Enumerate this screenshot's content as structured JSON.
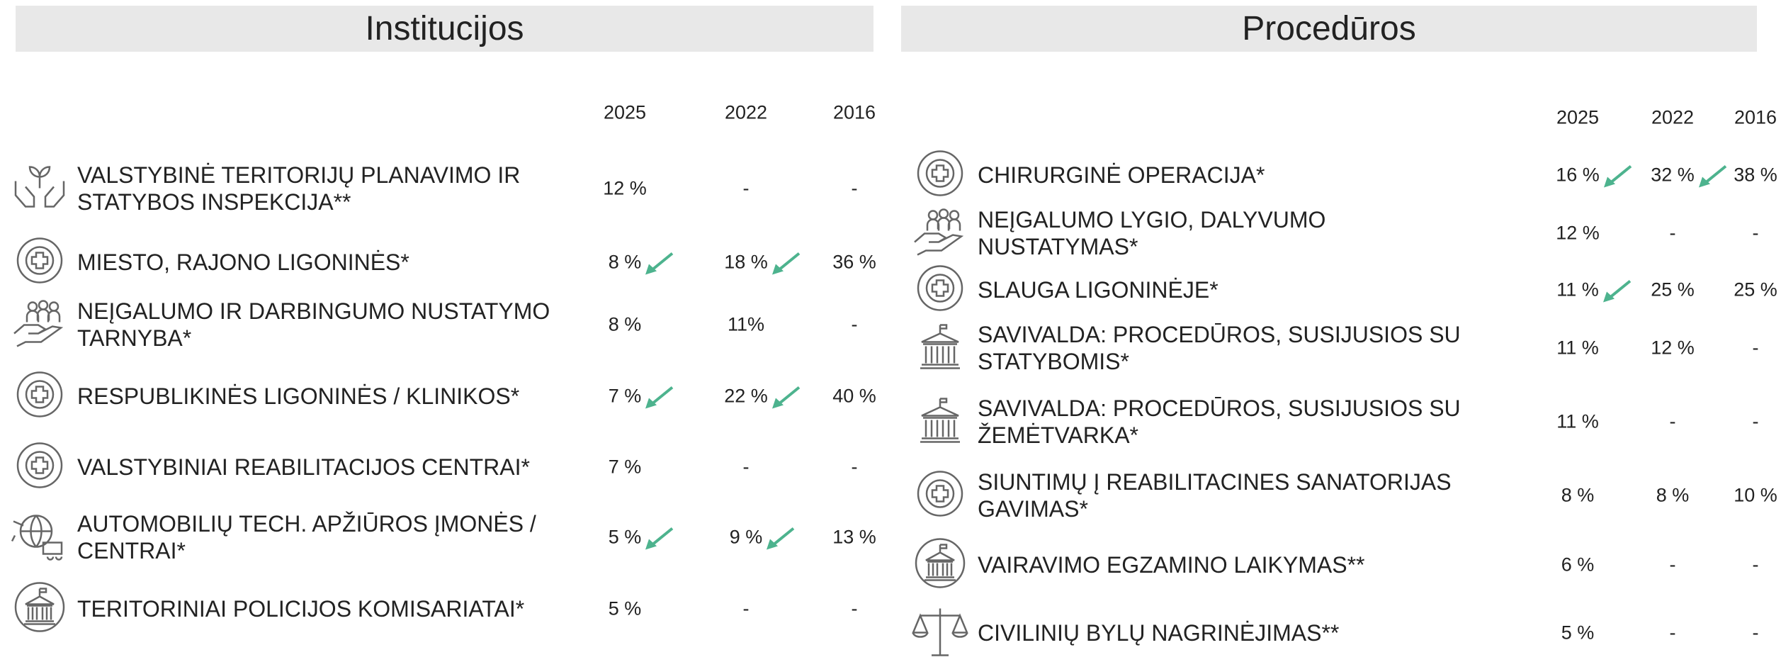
{
  "institutions": {
    "title": "Institucijos",
    "years": [
      "2025",
      "2022",
      "2016"
    ],
    "rows": [
      {
        "label": "VALSTYBINĖ TERITORIJŲ PLANAVIMO IR STATYBOS INSPEKCIJA**",
        "values": [
          "12 %",
          "-",
          "-"
        ]
      },
      {
        "label": "MIESTO, RAJONO LIGONINĖS*",
        "values": [
          "8 %",
          "18 %",
          "36 %"
        ]
      },
      {
        "label": "NEĮGALUMO IR DARBINGUMO NUSTATYMO TARNYBA*",
        "values": [
          "8 %",
          "11%",
          "-"
        ]
      },
      {
        "label": "RESPUBLIKINĖS LIGONINĖS / KLINIKOS*",
        "values": [
          "7 %",
          "22 %",
          "40 %"
        ]
      },
      {
        "label": "VALSTYBINIAI REABILITACIJOS CENTRAI*",
        "values": [
          "7 %",
          "-",
          "-"
        ]
      },
      {
        "label": "AUTOMOBILIŲ TECH. APŽIŪROS ĮMONĖS / CENTRAI*",
        "values": [
          "5 %",
          "9 %",
          "13 %"
        ]
      },
      {
        "label": "TERITORINIAI POLICIJOS KOMISARIATAI*",
        "values": [
          "5 %",
          "-",
          "-"
        ]
      }
    ]
  },
  "procedures": {
    "title": "Procedūros",
    "years": [
      "2025",
      "2022",
      "2016"
    ],
    "rows": [
      {
        "label": "CHIRURGINĖ OPERACIJA*",
        "values": [
          "16 %",
          "32 %",
          "38 %"
        ]
      },
      {
        "label": "NEĮGALUMO LYGIO, DALYVUMO NUSTATYMAS*",
        "values": [
          "12 %",
          "-",
          "-"
        ]
      },
      {
        "label": "SLAUGA LIGONINĖJE*",
        "values": [
          "11 %",
          "25 %",
          "25 %"
        ]
      },
      {
        "label": "SAVIVALDA: PROCEDŪROS, SUSIJUSIOS SU STATYBOMIS*",
        "values": [
          "11 %",
          "12 %",
          "-"
        ]
      },
      {
        "label": "SAVIVALDA: PROCEDŪROS, SUSIJUSIOS SU ŽEMĖTVARKA*",
        "values": [
          "11 %",
          "-",
          "-"
        ]
      },
      {
        "label": "SIUNTIMŲ Į REABILITACINES SANATORIJAS GAVIMAS*",
        "values": [
          "8 %",
          "8 %",
          "10 %"
        ]
      },
      {
        "label": "VAIRAVIMO EGZAMINO LAIKYMAS**",
        "values": [
          "6 %",
          "-",
          "-"
        ]
      },
      {
        "label": "CIVILINIŲ BYLŲ NAGRINĖJIMAS**",
        "values": [
          "5 %",
          "-",
          "-"
        ]
      }
    ]
  }
}
